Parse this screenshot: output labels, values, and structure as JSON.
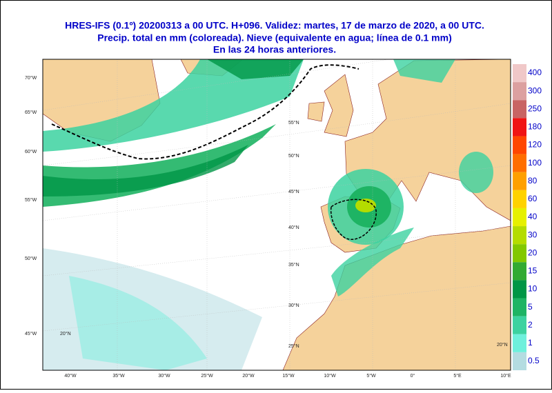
{
  "header": {
    "lines": [
      "HRES-IFS (0.1º) 20200313 a 00 UTC.  H+096. Validez: martes, 17 de marzo de 2020,  a  00 UTC.",
      "Precip. total en mm (coloreada). Nieve (equivalente en agua; línea de 0.1 mm)",
      "En las 24 horas anteriores."
    ]
  },
  "colorbar": [
    {
      "label": 400,
      "color": "#f0c8c8"
    },
    {
      "label": 300,
      "color": "#dca0a0"
    },
    {
      "label": 250,
      "color": "#c86464"
    },
    {
      "label": 180,
      "color": "#f01414"
    },
    {
      "label": 120,
      "color": "#ff4600"
    },
    {
      "label": 100,
      "color": "#ff6e00"
    },
    {
      "label": 80,
      "color": "#ffa000"
    },
    {
      "label": 60,
      "color": "#ffd200"
    },
    {
      "label": 40,
      "color": "#e6f000"
    },
    {
      "label": 30,
      "color": "#b4dc00"
    },
    {
      "label": 20,
      "color": "#82c800"
    },
    {
      "label": 15,
      "color": "#32aa32"
    },
    {
      "label": 10,
      "color": "#009646"
    },
    {
      "label": 5,
      "color": "#1eb464"
    },
    {
      "label": 2,
      "color": "#3cd2a0"
    },
    {
      "label": 1,
      "color": "#6ef0dc"
    },
    {
      "label": 0.5,
      "color": "#b4dce1"
    }
  ],
  "left_labels": [
    "70°W",
    "65°W",
    "60°W",
    "55°W",
    "50°W",
    "45°W"
  ],
  "lat_labels": [
    "55°N",
    "50°N",
    "45°N",
    "40°N",
    "35°N",
    "30°N",
    "25°N",
    "20°N",
    "20°N"
  ],
  "lon_labels": [
    "40°W",
    "35°W",
    "30°W",
    "25°W",
    "20°W",
    "15°W",
    "10°W",
    "5°W",
    "0°",
    "5°E",
    "10°E"
  ]
}
